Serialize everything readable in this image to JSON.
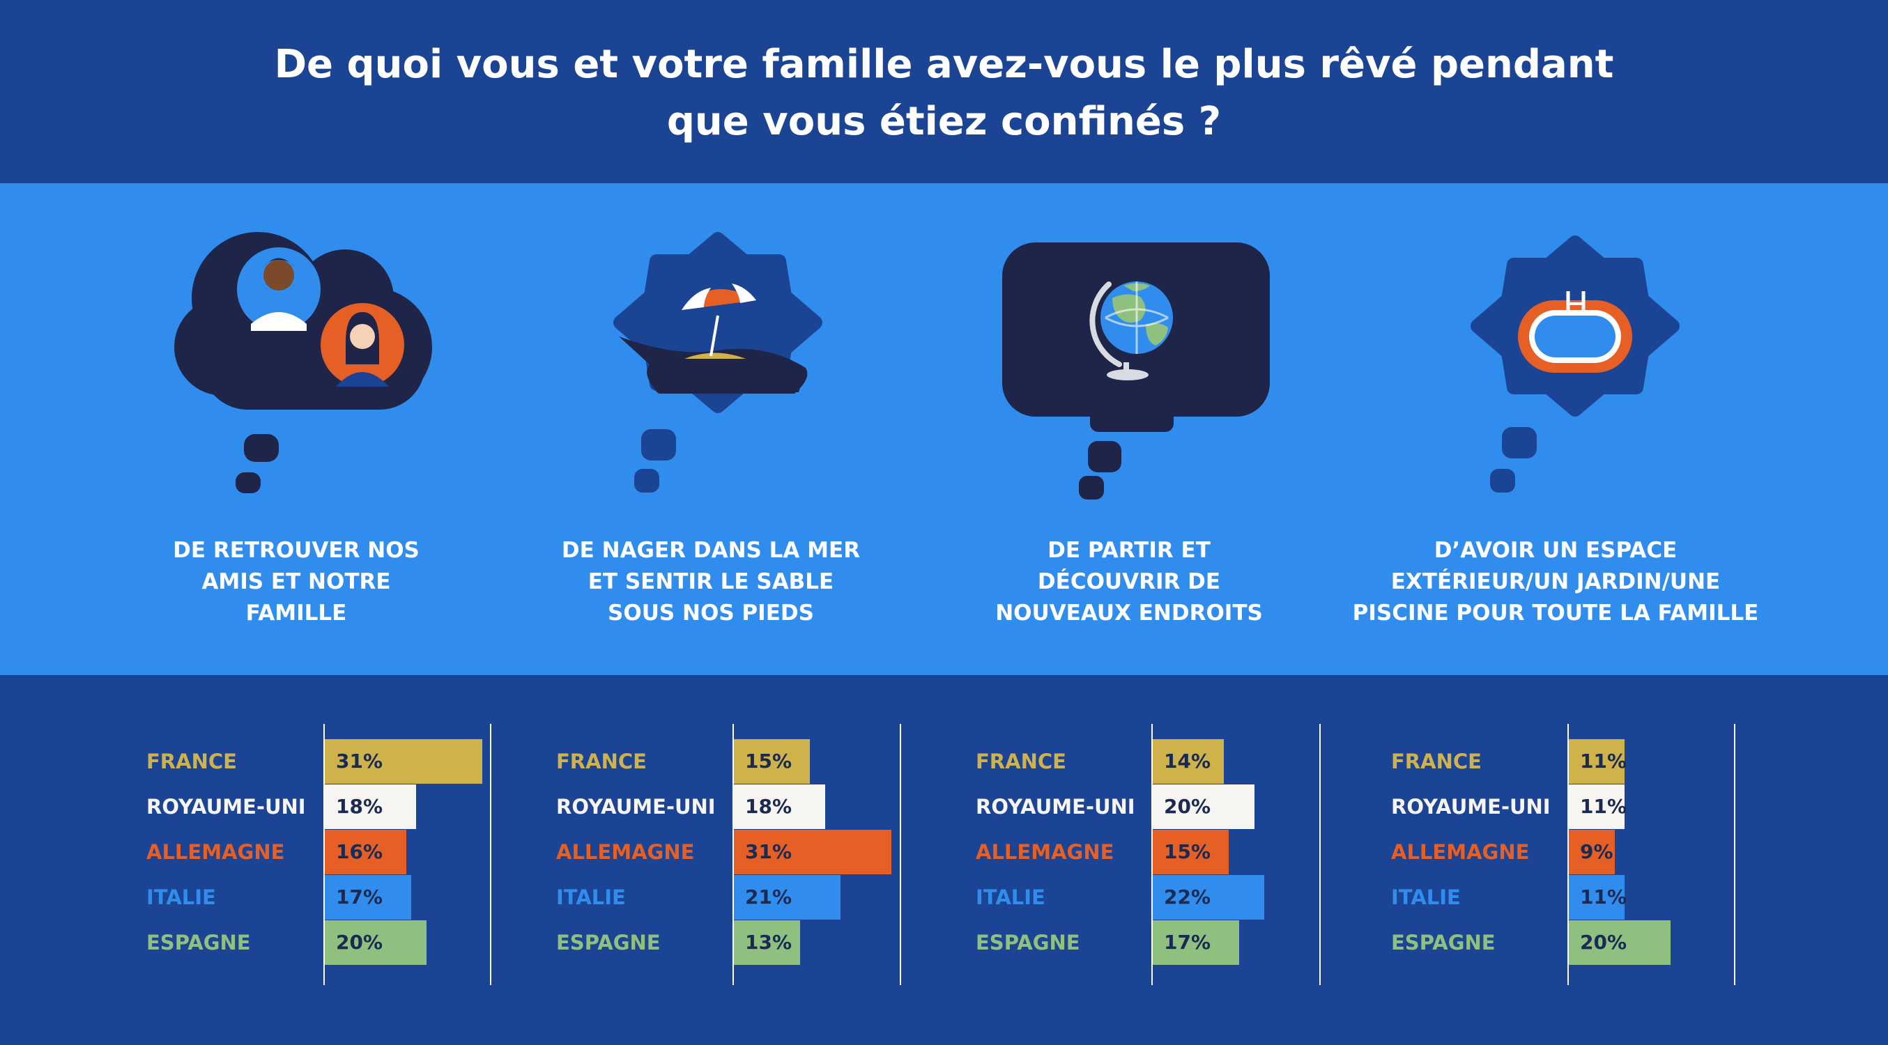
{
  "title": {
    "line1": "De quoi vous et votre famille avez-vous le plus rêvé pendant",
    "line2": "que vous étiez confinés ?"
  },
  "colors": {
    "header_bg": "#1c4494",
    "band_bg": "#318ded",
    "cloud_dark": "#1e2548",
    "cloud_blue": "#1c4494",
    "france": "#cfb34a",
    "royaume_uni": "#f7f5f1",
    "allemagne": "#e65f25",
    "italie": "#318ded",
    "espagne": "#8fc080"
  },
  "icons": [
    "friends-family-cloud-icon",
    "beach-umbrella-icon",
    "globe-icon",
    "pool-icon"
  ],
  "chart_data": {
    "type": "bar",
    "orientation": "horizontal",
    "categories": [
      "FRANCE",
      "ROYAUME-UNI",
      "ALLEMAGNE",
      "ITALIE",
      "ESPAGNE"
    ],
    "category_colors": [
      "#cfb34a",
      "#f7f5f1",
      "#e65f25",
      "#318ded",
      "#8fc080"
    ],
    "unit": "%",
    "xlim": [
      0,
      35
    ],
    "panels": [
      {
        "caption": [
          "DE RETROUVER NOS",
          "AMIS ET NOTRE",
          "FAMILLE"
        ],
        "values": [
          31,
          18,
          16,
          17,
          20
        ],
        "labels": [
          "31%",
          "18%",
          "16%",
          "17%",
          "20%"
        ]
      },
      {
        "caption": [
          "DE NAGER DANS LA MER",
          "ET SENTIR LE SABLE",
          "SOUS NOS PIEDS"
        ],
        "values": [
          15,
          18,
          31,
          21,
          13
        ],
        "labels": [
          "15%",
          "18%",
          "31%",
          "21%",
          "13%"
        ]
      },
      {
        "caption": [
          "DE PARTIR ET",
          "DÉCOUVRIR DE",
          "NOUVEAUX ENDROITS"
        ],
        "values": [
          14,
          20,
          15,
          22,
          17
        ],
        "labels": [
          "14%",
          "20%",
          "15%",
          "22%",
          "17%"
        ]
      },
      {
        "caption": [
          "D’AVOIR UN ESPACE",
          "EXTÉRIEUR/UN JARDIN/UNE",
          "PISCINE POUR TOUTE LA FAMILLE"
        ],
        "values": [
          11,
          11,
          9,
          11,
          20
        ],
        "labels": [
          "11%",
          "11%",
          "9%",
          "11%",
          "20%"
        ]
      }
    ]
  }
}
